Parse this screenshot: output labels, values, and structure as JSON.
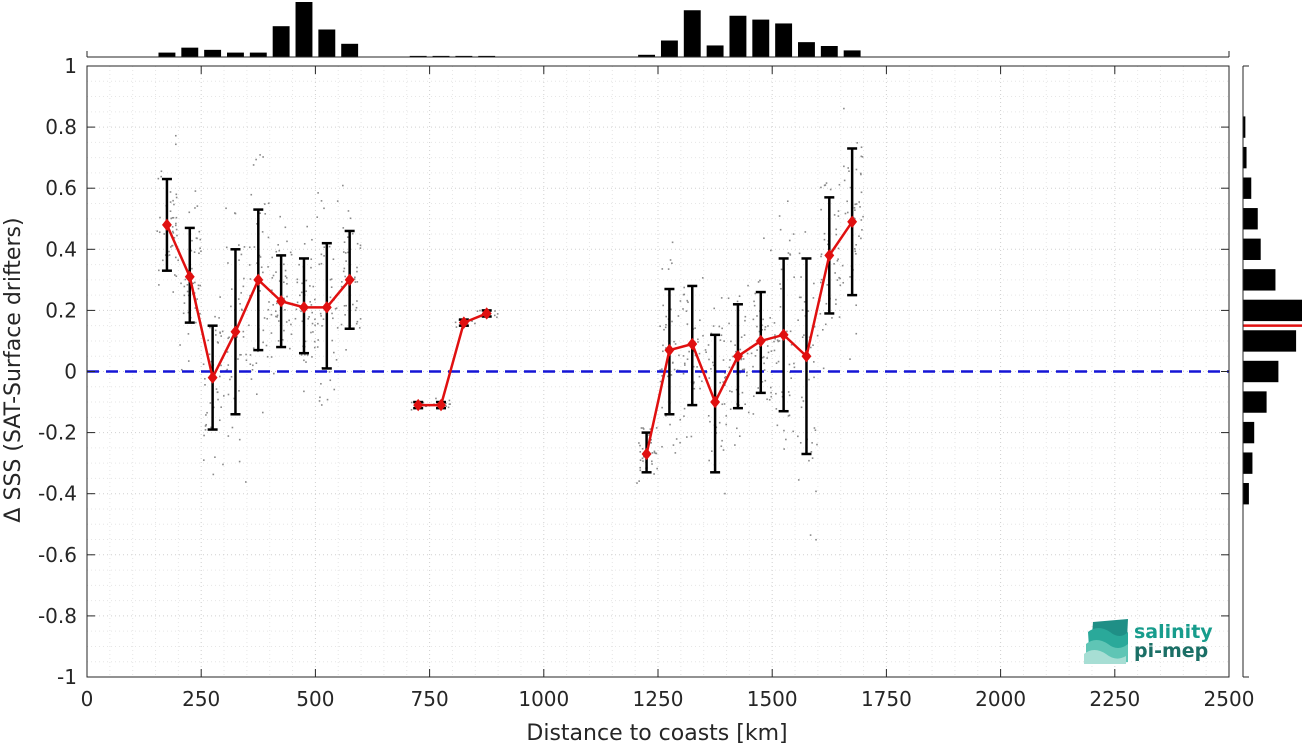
{
  "chart_data": {
    "type": "line",
    "xlabel": "Distance to coasts [km]",
    "ylabel": "Δ SSS (SAT-Surface drifters)",
    "xlim": [
      0,
      2500
    ],
    "ylim": [
      -1,
      1
    ],
    "xticks": [
      0,
      250,
      500,
      750,
      1000,
      1250,
      1500,
      1750,
      2000,
      2250,
      2500
    ],
    "yticks": [
      -1,
      -0.8,
      -0.6,
      -0.4,
      -0.2,
      0,
      0.2,
      0.4,
      0.6,
      0.8,
      1
    ],
    "xtick_labels": [
      "0",
      "250",
      "500",
      "750",
      "1000",
      "1250",
      "1500",
      "1750",
      "2000",
      "2250",
      "2500"
    ],
    "ytick_labels": [
      "-1",
      "-0.8",
      "-0.6",
      "-0.4",
      "-0.2",
      "0",
      "0.2",
      "0.4",
      "0.6",
      "0.8",
      "1"
    ],
    "grid": true,
    "reference_line": {
      "y": 0,
      "style": "dashed",
      "color": "#1515d6"
    },
    "mean_series_segments": [
      {
        "x": [
          175,
          225,
          275,
          325,
          375,
          425,
          475,
          525,
          575
        ],
        "y": [
          0.48,
          0.31,
          -0.02,
          0.13,
          0.3,
          0.23,
          0.21,
          0.21,
          0.3
        ],
        "err_low": [
          0.33,
          0.16,
          -0.19,
          -0.14,
          0.07,
          0.08,
          0.06,
          0.01,
          0.14
        ],
        "err_high": [
          0.63,
          0.47,
          0.15,
          0.4,
          0.53,
          0.38,
          0.37,
          0.42,
          0.46
        ]
      },
      {
        "x": [
          725,
          775,
          825,
          875
        ],
        "y": [
          -0.11,
          -0.11,
          0.16,
          0.19
        ],
        "err_low": [
          -0.12,
          -0.12,
          0.15,
          0.18
        ],
        "err_high": [
          -0.1,
          -0.1,
          0.17,
          0.2
        ]
      },
      {
        "x": [
          1225,
          1275,
          1325,
          1375,
          1425,
          1475,
          1525,
          1575,
          1625,
          1675
        ],
        "y": [
          -0.27,
          0.07,
          0.09,
          -0.1,
          0.05,
          0.1,
          0.12,
          0.05,
          0.38,
          0.49
        ],
        "err_low": [
          -0.33,
          -0.14,
          -0.11,
          -0.33,
          -0.12,
          -0.07,
          -0.13,
          -0.27,
          0.19,
          0.25
        ],
        "err_high": [
          -0.2,
          0.27,
          0.28,
          0.12,
          0.22,
          0.26,
          0.37,
          0.37,
          0.57,
          0.73
        ]
      }
    ],
    "top_histogram": {
      "bin_centers": [
        175,
        225,
        275,
        325,
        375,
        425,
        475,
        525,
        575,
        725,
        775,
        825,
        875,
        1225,
        1275,
        1325,
        1375,
        1425,
        1475,
        1525,
        1575,
        1625,
        1675
      ],
      "heights": [
        0.08,
        0.17,
        0.13,
        0.08,
        0.08,
        0.56,
        1.0,
        0.5,
        0.24,
        0.02,
        0.02,
        0.02,
        0.02,
        0.04,
        0.3,
        0.85,
        0.21,
        0.75,
        0.68,
        0.61,
        0.27,
        0.2,
        0.12
      ]
    },
    "right_histogram": {
      "bin_centers": [
        0.8,
        0.7,
        0.6,
        0.5,
        0.4,
        0.3,
        0.2,
        0.1,
        0.0,
        -0.1,
        -0.2,
        -0.3,
        -0.4
      ],
      "heights": [
        0.04,
        0.06,
        0.14,
        0.25,
        0.3,
        0.55,
        1.0,
        0.9,
        0.6,
        0.4,
        0.19,
        0.16,
        0.1
      ],
      "mean_line": 0.15
    }
  },
  "logo": {
    "line1": "salinity",
    "line2": "pi-mep",
    "text_color": "#179c8c"
  }
}
